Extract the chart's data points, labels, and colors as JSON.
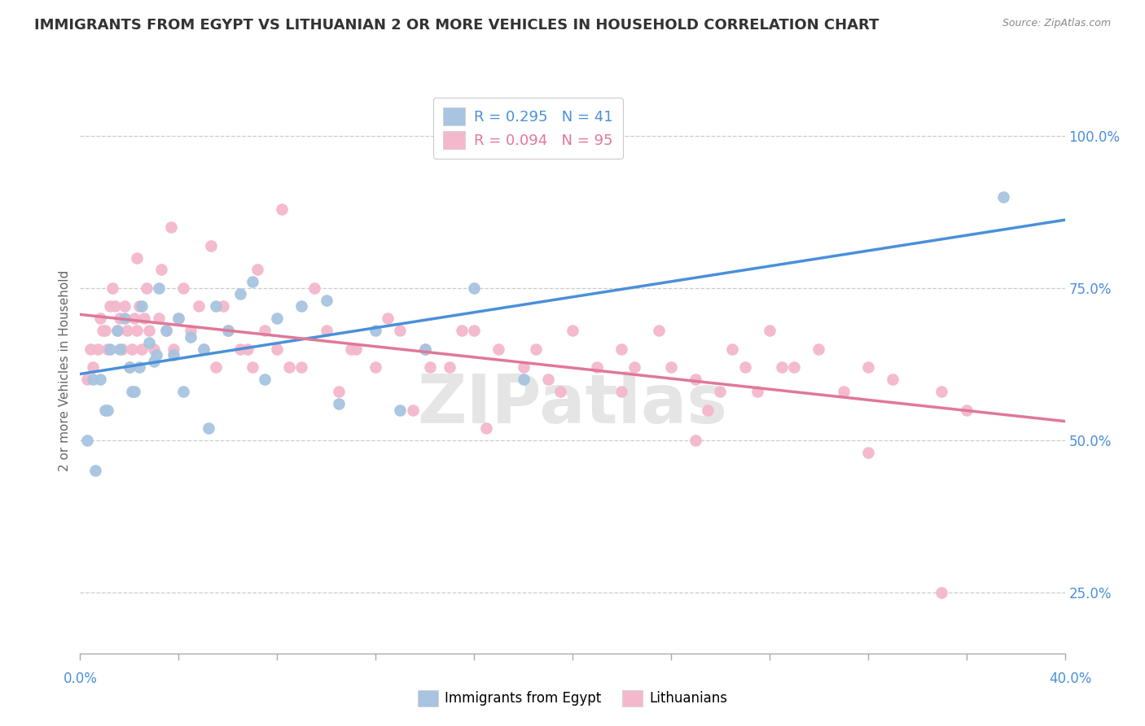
{
  "title": "IMMIGRANTS FROM EGYPT VS LITHUANIAN 2 OR MORE VEHICLES IN HOUSEHOLD CORRELATION CHART",
  "source": "Source: ZipAtlas.com",
  "legend_labels": [
    "Immigrants from Egypt",
    "Lithuanians"
  ],
  "blue_R": 0.295,
  "blue_N": 41,
  "pink_R": 0.094,
  "pink_N": 95,
  "blue_color": "#a8c4e0",
  "pink_color": "#f4b8cc",
  "blue_line_color": "#4a90d9",
  "pink_line_color": "#e07898",
  "watermark": "ZIPatlas",
  "xlim": [
    0.0,
    40.0
  ],
  "ylim": [
    15.0,
    108.0
  ],
  "y_ticks": [
    25,
    50,
    75,
    100
  ],
  "blue_scatter_x": [
    0.5,
    1.0,
    1.2,
    1.5,
    1.8,
    2.0,
    2.2,
    2.5,
    2.8,
    3.0,
    3.2,
    3.5,
    3.8,
    4.0,
    4.5,
    5.0,
    5.5,
    6.0,
    6.5,
    7.0,
    8.0,
    9.0,
    10.0,
    12.0,
    14.0,
    16.0,
    0.3,
    0.6,
    0.8,
    1.1,
    1.6,
    2.1,
    2.4,
    3.1,
    4.2,
    5.2,
    7.5,
    10.5,
    13.0,
    18.0,
    37.5
  ],
  "blue_scatter_y": [
    60,
    55,
    65,
    68,
    70,
    62,
    58,
    72,
    66,
    63,
    75,
    68,
    64,
    70,
    67,
    65,
    72,
    68,
    74,
    76,
    70,
    72,
    73,
    68,
    65,
    75,
    50,
    45,
    60,
    55,
    65,
    58,
    62,
    64,
    58,
    52,
    60,
    56,
    55,
    60,
    90
  ],
  "pink_scatter_x": [
    0.3,
    0.5,
    0.7,
    0.8,
    1.0,
    1.1,
    1.2,
    1.3,
    1.5,
    1.6,
    1.7,
    1.8,
    1.9,
    2.0,
    2.1,
    2.2,
    2.3,
    2.4,
    2.5,
    2.6,
    2.8,
    3.0,
    3.2,
    3.5,
    3.8,
    4.0,
    4.5,
    5.0,
    5.5,
    6.0,
    6.5,
    7.0,
    7.5,
    8.0,
    9.0,
    10.0,
    11.0,
    12.0,
    13.0,
    14.0,
    15.0,
    16.0,
    17.0,
    18.0,
    19.0,
    20.0,
    22.0,
    24.0,
    25.0,
    26.0,
    27.0,
    28.0,
    30.0,
    32.0,
    33.0,
    35.0,
    0.4,
    0.9,
    1.4,
    2.7,
    3.3,
    4.2,
    5.8,
    6.8,
    8.5,
    10.5,
    13.5,
    16.5,
    19.5,
    22.5,
    25.5,
    27.5,
    29.0,
    31.0,
    36.0,
    2.3,
    4.8,
    7.2,
    9.5,
    12.5,
    15.5,
    18.5,
    21.0,
    23.5,
    26.5,
    28.5,
    3.7,
    5.3,
    8.2,
    11.2,
    14.2,
    22.0,
    25.0,
    32.0,
    35.0
  ],
  "pink_scatter_y": [
    60,
    62,
    65,
    70,
    68,
    65,
    72,
    75,
    68,
    70,
    65,
    72,
    68,
    62,
    65,
    70,
    68,
    72,
    65,
    70,
    68,
    65,
    70,
    68,
    65,
    70,
    68,
    65,
    62,
    68,
    65,
    62,
    68,
    65,
    62,
    68,
    65,
    62,
    68,
    65,
    62,
    68,
    65,
    62,
    60,
    68,
    65,
    62,
    60,
    58,
    62,
    68,
    65,
    62,
    60,
    58,
    65,
    68,
    72,
    75,
    78,
    75,
    72,
    65,
    62,
    58,
    55,
    52,
    58,
    62,
    55,
    58,
    62,
    58,
    55,
    80,
    72,
    78,
    75,
    70,
    68,
    65,
    62,
    68,
    65,
    62,
    85,
    82,
    88,
    65,
    62,
    58,
    50,
    48,
    25
  ]
}
